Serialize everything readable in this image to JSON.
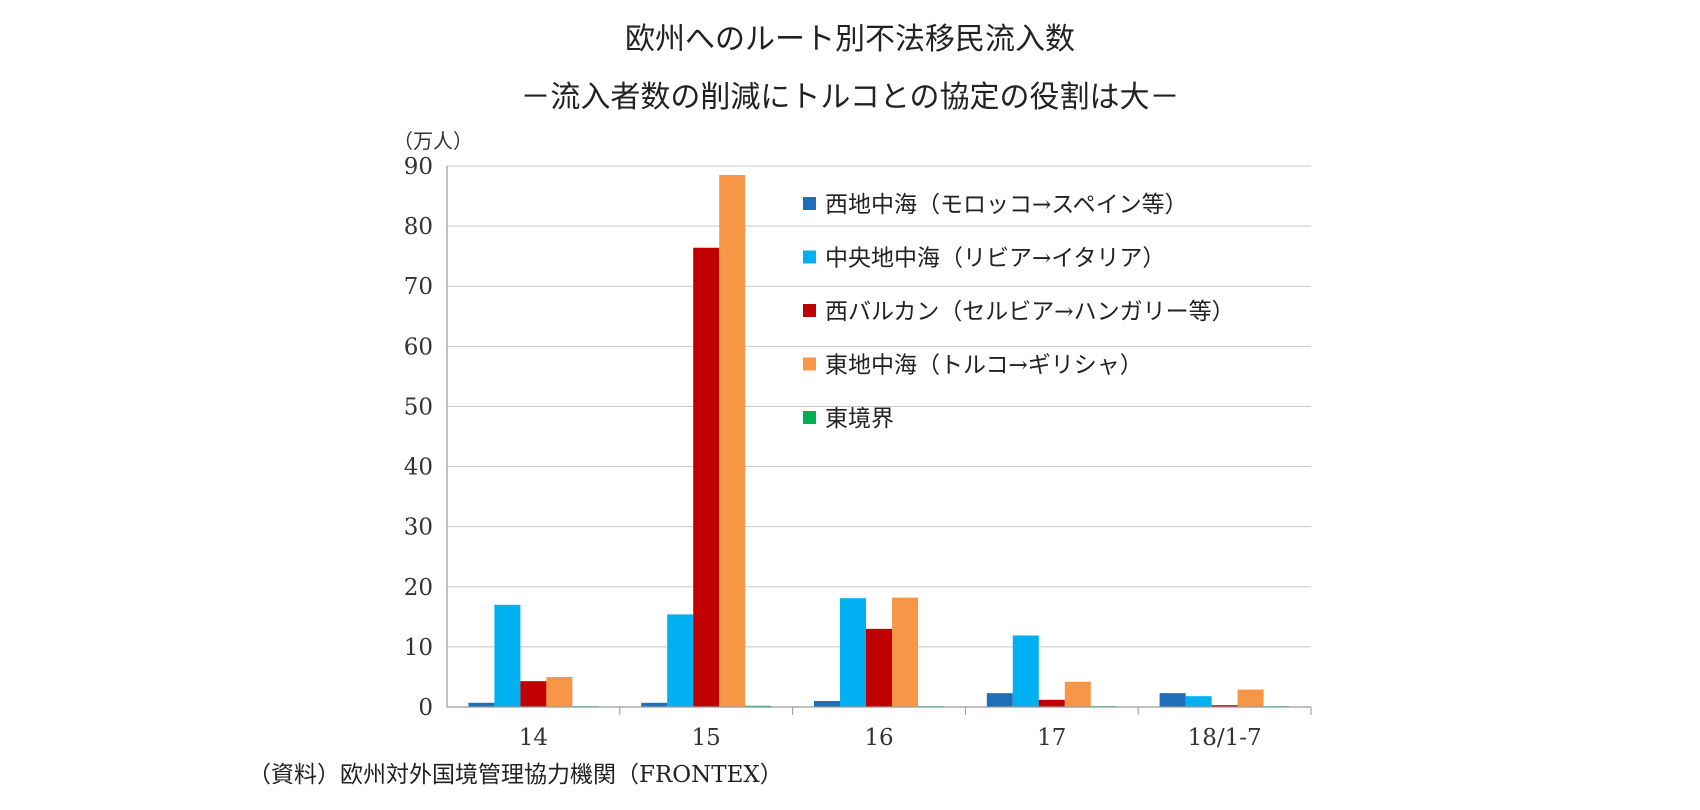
{
  "chart_data": {
    "type": "bar",
    "title": "欧州へのルート別不法移民流入数",
    "subtitle": "－流入者数の削減にトルコとの協定の役割は大－",
    "ylabel": "（万人）",
    "xlabel": "",
    "ylim": [
      0,
      90
    ],
    "yticks": [
      0,
      10,
      20,
      30,
      40,
      50,
      60,
      70,
      80,
      90
    ],
    "grid": true,
    "legend_position": "top-right",
    "categories": [
      "14",
      "15",
      "16",
      "17",
      "18/1-7"
    ],
    "series": [
      {
        "name": "西地中海（モロッコ→スペイン等）",
        "color": "#1f6fb8",
        "values": [
          0.7,
          0.7,
          1.0,
          2.3,
          2.3
        ]
      },
      {
        "name": "中央地中海（リビア→イタリア）",
        "color": "#00b0f0",
        "values": [
          17.0,
          15.4,
          18.1,
          11.9,
          1.8
        ]
      },
      {
        "name": "西バルカン（セルビア→ハンガリー等）",
        "color": "#c00000",
        "values": [
          4.3,
          76.4,
          13.0,
          1.2,
          0.3
        ]
      },
      {
        "name": "東地中海（トルコ→ギリシャ）",
        "color": "#f79646",
        "values": [
          5.0,
          88.5,
          18.2,
          4.2,
          2.9
        ]
      },
      {
        "name": "東境界",
        "color": "#00b050",
        "values": [
          0.1,
          0.2,
          0.1,
          0.1,
          0.05
        ]
      }
    ]
  },
  "source_note": "（資料）欧州対外国境管理協力機関（FRONTEX）"
}
